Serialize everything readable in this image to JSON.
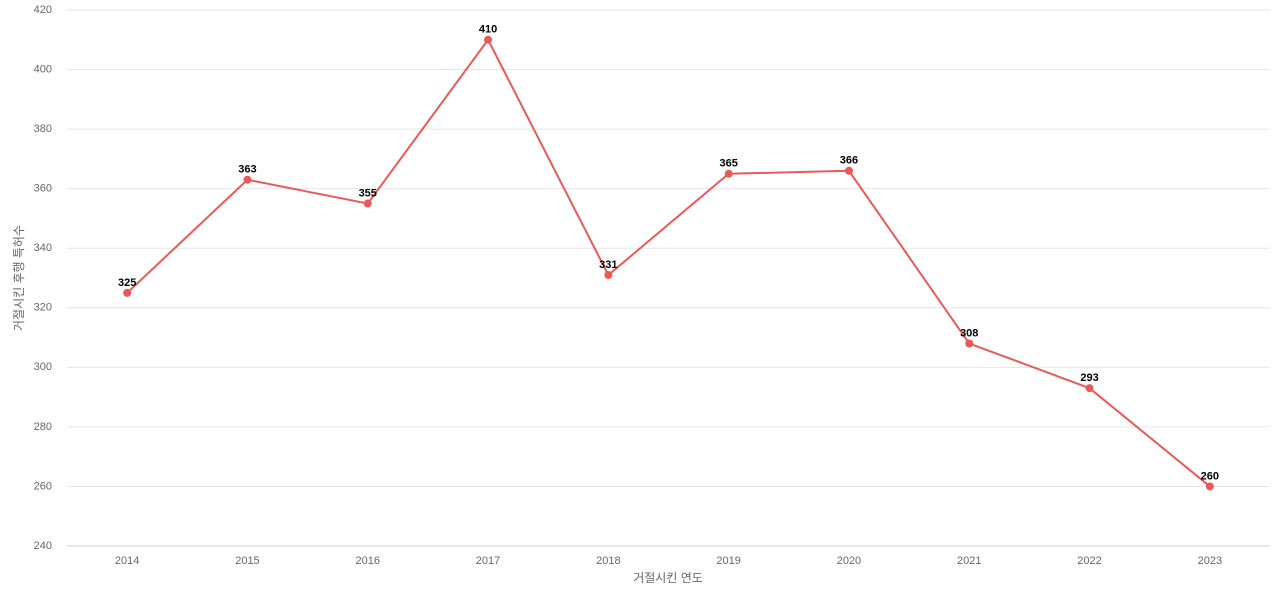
{
  "chart_data": {
    "type": "line",
    "x_label": "거절시킨 연도",
    "y_label": "거절시킨 후행 특허수",
    "categories": [
      "2014",
      "2015",
      "2016",
      "2017",
      "2018",
      "2019",
      "2020",
      "2021",
      "2022",
      "2023"
    ],
    "series": [
      {
        "name": "거절시킨 후행 특허수",
        "color": "#e85a5a",
        "values": [
          325,
          363,
          355,
          410,
          331,
          365,
          366,
          308,
          293,
          260
        ]
      }
    ],
    "ylim": [
      240,
      420
    ],
    "yticks": [
      240,
      260,
      280,
      300,
      320,
      340,
      360,
      380,
      400,
      420
    ],
    "grid": true
  }
}
